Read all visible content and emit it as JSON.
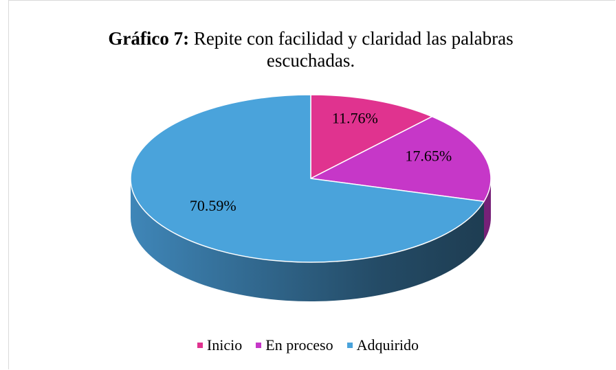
{
  "chart_data": {
    "type": "pie",
    "title_bold": "Gráfico 7:",
    "title": "Repite con facilidad y claridad las palabras escuchadas.",
    "categories": [
      "Inicio",
      "En proceso",
      "Adquirido"
    ],
    "values": [
      11.76,
      17.65,
      70.59
    ],
    "value_labels": [
      "11.76%",
      "17.65%",
      "70.59%"
    ],
    "colors": [
      "#e0338f",
      "#c637c8",
      "#4aa3db"
    ],
    "legend": "bottom"
  }
}
